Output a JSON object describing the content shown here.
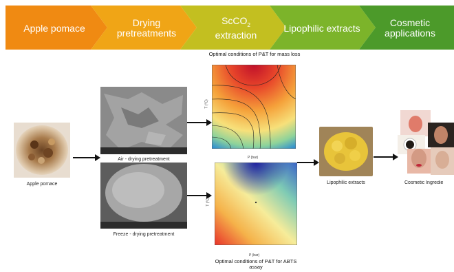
{
  "stages": [
    {
      "label": "Apple pomace",
      "color": "#f08a12"
    },
    {
      "label": "Drying pretreatments",
      "color": "#f0a516"
    },
    {
      "label": "ScCO2 extraction",
      "color": "#c3bf20"
    },
    {
      "label": "Lipophilic extracts",
      "color": "#7cb42a"
    },
    {
      "label": "Cosmetic applications",
      "color": "#4c9a2a"
    }
  ],
  "sc_parts": {
    "prefix": "ScCO",
    "sub": "2",
    "suffix": "extraction"
  },
  "photos": {
    "apple_pomace": "Apple pomace",
    "air_drying": "Air - drying pretreatment",
    "freeze_drying": "Freeze - drying pretreatment",
    "lipophilic": "Lipophilic extracts",
    "cosmetic": "Cosmetic Ingredie"
  },
  "plots": {
    "mass_loss_title": "Optimal conditions of P&T for mass loss",
    "abts_title": "Optimal conditions of P&T for ABTS assay",
    "xlabel": "P (bar)",
    "ylabel": "T (°C)"
  }
}
